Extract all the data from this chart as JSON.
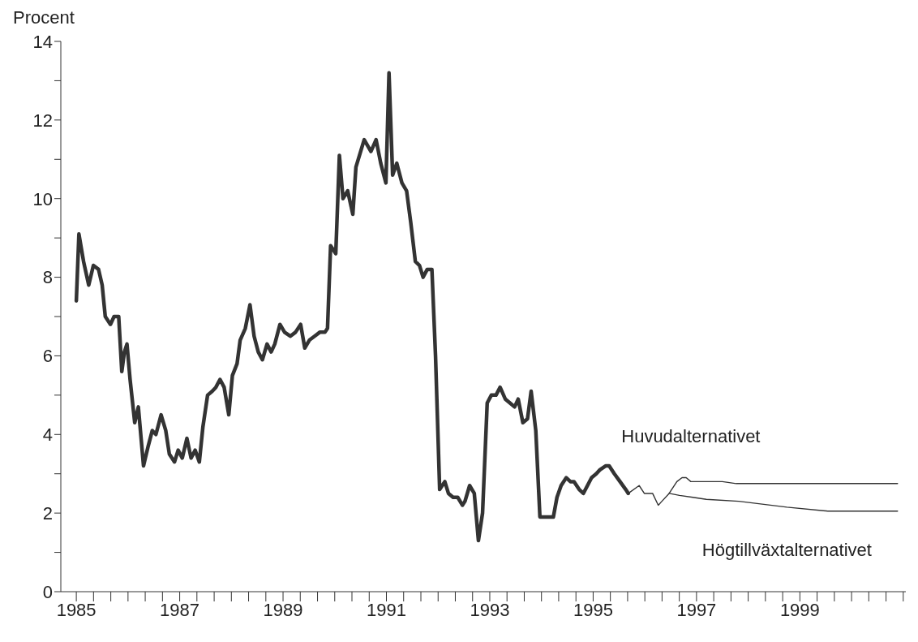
{
  "chart_data": {
    "type": "line",
    "ylabel": "Procent",
    "xlim": [
      1984.7,
      2001.05
    ],
    "ylim": [
      0,
      14
    ],
    "xticks": [
      1985,
      {
        "value": 1985.333,
        "label": null
      },
      {
        "value": 1985.667,
        "label": null
      },
      {
        "value": 1986,
        "label": null
      },
      {
        "value": 1986.333,
        "label": null
      },
      {
        "value": 1986.667,
        "label": null
      },
      1987,
      {
        "value": 1987.333,
        "label": null
      },
      {
        "value": 1987.667,
        "label": null
      },
      {
        "value": 1988,
        "label": null
      },
      {
        "value": 1988.333,
        "label": null
      },
      {
        "value": 1988.667,
        "label": null
      },
      1989,
      {
        "value": 1989.333,
        "label": null
      },
      {
        "value": 1989.667,
        "label": null
      },
      {
        "value": 1990,
        "label": null
      },
      {
        "value": 1990.333,
        "label": null
      },
      {
        "value": 1990.667,
        "label": null
      },
      1991,
      {
        "value": 1991.333,
        "label": null
      },
      {
        "value": 1991.667,
        "label": null
      },
      {
        "value": 1992,
        "label": null
      },
      {
        "value": 1992.333,
        "label": null
      },
      {
        "value": 1992.667,
        "label": null
      },
      1993,
      {
        "value": 1993.333,
        "label": null
      },
      {
        "value": 1993.667,
        "label": null
      },
      {
        "value": 1994,
        "label": null
      },
      {
        "value": 1994.333,
        "label": null
      },
      {
        "value": 1994.667,
        "label": null
      },
      1995,
      {
        "value": 1995.333,
        "label": null
      },
      {
        "value": 1995.667,
        "label": null
      },
      {
        "value": 1996,
        "label": null
      },
      {
        "value": 1996.333,
        "label": null
      },
      {
        "value": 1996.667,
        "label": null
      },
      1997,
      {
        "value": 1997.333,
        "label": null
      },
      {
        "value": 1997.667,
        "label": null
      },
      {
        "value": 1998,
        "label": null
      },
      {
        "value": 1998.333,
        "label": null
      },
      {
        "value": 1998.667,
        "label": null
      },
      1999,
      {
        "value": 1999.333,
        "label": null
      },
      {
        "value": 1999.667,
        "label": null
      },
      {
        "value": 2000,
        "label": null
      },
      {
        "value": 2000.333,
        "label": null
      },
      {
        "value": 2000.667,
        "label": null
      },
      {
        "value": 2001,
        "label": null
      }
    ],
    "yticks": [
      0,
      {
        "value": 1,
        "label": null
      },
      2,
      {
        "value": 3,
        "label": null
      },
      4,
      {
        "value": 5,
        "label": null
      },
      6,
      {
        "value": 7,
        "label": null
      },
      8,
      {
        "value": 9,
        "label": null
      },
      10,
      {
        "value": 11,
        "label": null
      },
      12,
      {
        "value": 13,
        "label": null
      },
      14
    ],
    "marker": "none",
    "series": [
      {
        "color": "#333333",
        "x": [
          1985.0,
          1985.05,
          1985.14,
          1985.24,
          1985.33,
          1985.43,
          1985.5,
          1985.56,
          1985.66,
          1985.73,
          1985.82,
          1985.88,
          1985.93,
          1985.98,
          1986.04,
          1986.13,
          1986.2,
          1986.3,
          1986.39,
          1986.47,
          1986.54,
          1986.64,
          1986.73,
          1986.8,
          1986.9,
          1986.97,
          1987.05,
          1987.14,
          1987.22,
          1987.3,
          1987.38,
          1987.45,
          1987.54,
          1987.63,
          1987.7,
          1987.78,
          1987.86,
          1987.95,
          1988.02,
          1988.11,
          1988.17,
          1988.27,
          1988.36,
          1988.44,
          1988.52,
          1988.6,
          1988.69,
          1988.77,
          1988.84,
          1988.94,
          1989.03,
          1989.14,
          1989.24,
          1989.34,
          1989.42,
          1989.51,
          1989.61,
          1989.71,
          1989.81,
          1989.86,
          1989.92,
          1990.02,
          1990.09,
          1990.16,
          1990.25,
          1990.35,
          1990.41,
          1990.57,
          1990.7,
          1990.8,
          1990.89,
          1990.99,
          1991.05,
          1991.12,
          1991.2,
          1991.3,
          1991.39,
          1991.47,
          1991.56,
          1991.64,
          1991.71,
          1991.79,
          1991.88,
          1991.95,
          1992.03,
          1992.13,
          1992.2,
          1992.29,
          1992.38,
          1992.47,
          1992.52,
          1992.61,
          1992.7,
          1992.78,
          1992.86,
          1992.95,
          1993.03,
          1993.12,
          1993.2,
          1993.3,
          1993.39,
          1993.48,
          1993.55,
          1993.64,
          1993.73,
          1993.8,
          1993.89,
          1993.97,
          1994.06,
          1994.15,
          1994.23,
          1994.3,
          1994.38,
          1994.48,
          1994.56,
          1994.63,
          1994.73,
          1994.81,
          1994.89,
          1994.97,
          1995.06,
          1995.13,
          1995.24,
          1995.31,
          1995.41,
          1995.52,
          1995.63,
          1995.68
        ],
        "values": [
          7.4,
          9.1,
          8.4,
          7.8,
          8.3,
          8.2,
          7.8,
          7.0,
          6.8,
          7.0,
          7.0,
          5.6,
          6.1,
          6.3,
          5.4,
          4.3,
          4.7,
          3.2,
          3.7,
          4.1,
          4.0,
          4.5,
          4.1,
          3.5,
          3.3,
          3.6,
          3.4,
          3.9,
          3.4,
          3.6,
          3.3,
          4.2,
          5.0,
          5.1,
          5.2,
          5.4,
          5.2,
          4.5,
          5.5,
          5.8,
          6.4,
          6.7,
          7.3,
          6.5,
          6.1,
          5.9,
          6.3,
          6.1,
          6.3,
          6.8,
          6.6,
          6.5,
          6.6,
          6.8,
          6.2,
          6.4,
          6.5,
          6.6,
          6.6,
          6.7,
          8.8,
          8.6,
          11.1,
          10.0,
          10.2,
          9.6,
          10.8,
          11.5,
          11.2,
          11.5,
          10.9,
          10.4,
          13.2,
          10.6,
          10.9,
          10.4,
          10.2,
          9.4,
          8.4,
          8.3,
          8.0,
          8.2,
          8.2,
          6.0,
          2.6,
          2.8,
          2.5,
          2.4,
          2.4,
          2.2,
          2.3,
          2.7,
          2.5,
          1.3,
          2.0,
          4.8,
          5.0,
          5.0,
          5.2,
          4.9,
          4.8,
          4.7,
          4.9,
          4.3,
          4.4,
          5.1,
          4.1,
          1.9,
          1.9,
          1.9,
          1.9,
          2.4,
          2.7,
          2.9,
          2.8,
          2.8,
          2.6,
          2.5,
          2.7,
          2.9,
          3.0,
          3.1,
          3.2,
          3.2,
          3.0,
          2.8,
          2.6,
          2.5
        ]
      },
      {
        "name": "Huvudalternativet",
        "color": "#333333",
        "x": [
          1995.68,
          1995.89,
          1995.99,
          1996.15,
          1996.26,
          1996.33,
          1996.47,
          1996.62,
          1996.72,
          1996.8,
          1996.89,
          1997.5,
          1997.77,
          2000.89
        ],
        "values": [
          2.5,
          2.7,
          2.5,
          2.5,
          2.2,
          2.3,
          2.5,
          2.8,
          2.9,
          2.9,
          2.8,
          2.8,
          2.75,
          2.75
        ]
      },
      {
        "name": "Högtillväxtalternativet",
        "color": "#333333",
        "x": [
          1996.47,
          1996.67,
          1996.93,
          1997.19,
          1997.82,
          1998.75,
          1999.54,
          2000.89
        ],
        "values": [
          2.5,
          2.45,
          2.4,
          2.35,
          2.3,
          2.15,
          2.05,
          2.05
        ]
      }
    ]
  }
}
